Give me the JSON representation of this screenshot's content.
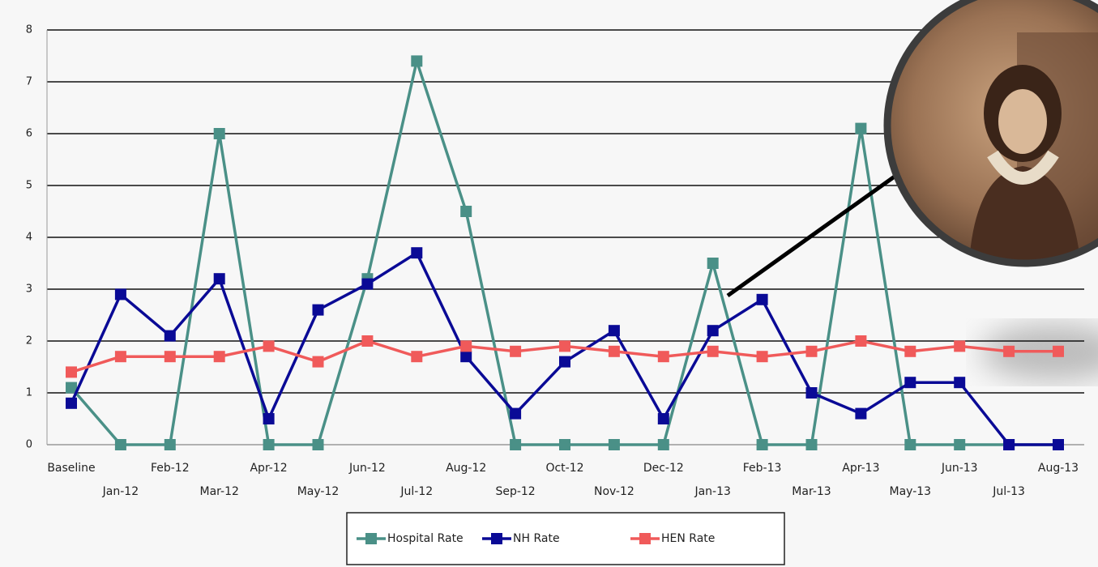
{
  "chart_data": {
    "type": "line",
    "categories": [
      "Baseline",
      "Jan-12",
      "Feb-12",
      "Mar-12",
      "Apr-12",
      "May-12",
      "Jun-12",
      "Jul-12",
      "Aug-12",
      "Sep-12",
      "Oct-12",
      "Nov-12",
      "Dec-12",
      "Jan-13",
      "Feb-13",
      "Mar-13",
      "Apr-13",
      "May-13",
      "Jun-13",
      "Jul-13",
      "Aug-13"
    ],
    "series": [
      {
        "name": "Hospital Rate",
        "color": "#4a9087",
        "values": [
          1.1,
          0,
          0,
          6.0,
          0,
          0,
          3.2,
          7.4,
          4.5,
          0,
          0,
          0,
          0,
          3.5,
          0,
          0,
          6.1,
          0,
          0,
          0,
          0
        ]
      },
      {
        "name": "NH Rate",
        "color": "#0a0a96",
        "values": [
          0.8,
          2.9,
          2.1,
          3.2,
          0.5,
          2.6,
          3.1,
          3.7,
          1.7,
          0.6,
          1.6,
          2.2,
          0.5,
          2.2,
          2.8,
          1.0,
          0.6,
          1.2,
          1.2,
          0,
          0
        ]
      },
      {
        "name": "HEN Rate",
        "color": "#f05a5a",
        "values": [
          1.4,
          1.7,
          1.7,
          1.7,
          1.9,
          1.6,
          2.0,
          1.7,
          1.9,
          1.8,
          1.9,
          1.8,
          1.7,
          1.8,
          1.7,
          1.8,
          2.0,
          1.8,
          1.9,
          1.8,
          1.8
        ]
      }
    ],
    "ylim": [
      0,
      8
    ],
    "yticks": [
      0,
      1,
      2,
      3,
      4,
      5,
      6,
      7,
      8
    ],
    "grid": true,
    "legend": "bottom"
  }
}
